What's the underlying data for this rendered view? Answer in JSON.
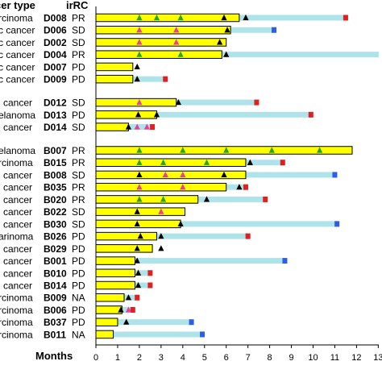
{
  "chart_data": {
    "type": "bar",
    "orientation": "horizontal",
    "header": {
      "cancer_col": "cer type",
      "irrc_col": "irRC"
    },
    "xlabel": "Months",
    "xlim": [
      0,
      13
    ],
    "xticks": [
      0,
      1,
      2,
      3,
      4,
      5,
      6,
      7,
      8,
      9,
      10,
      11,
      12,
      13
    ],
    "colors": {
      "bar_fill": "#ffff00",
      "bar_stroke": "#000000",
      "followup": "#aee3ea",
      "marker_green": "#22a524",
      "marker_pink": "#e8409a",
      "marker_black": "#000000",
      "end_red": "#e0201e",
      "end_blue": "#2f5de6"
    },
    "rows": [
      {
        "cancer": "rcinoma",
        "id": "D008",
        "irrc": "PR",
        "bar": 6.6,
        "follow": 11.5,
        "end": "red",
        "markers": [
          {
            "x": 2,
            "c": "green"
          },
          {
            "x": 2.8,
            "c": "green"
          },
          {
            "x": 3.9,
            "c": "green"
          },
          {
            "x": 5.9,
            "c": "black"
          },
          {
            "x": 6.9,
            "c": "black"
          }
        ]
      },
      {
        "cancer": "c cancer",
        "id": "D006",
        "irrc": "SD",
        "bar": 6.2,
        "follow": 8.2,
        "end": "blue",
        "markers": [
          {
            "x": 2,
            "c": "pink"
          },
          {
            "x": 3.7,
            "c": "pink"
          },
          {
            "x": 6.05,
            "c": "black"
          }
        ]
      },
      {
        "cancer": "c cancer",
        "id": "D002",
        "irrc": "SD",
        "bar": 6.0,
        "follow": null,
        "end": null,
        "markers": [
          {
            "x": 2,
            "c": "pink"
          },
          {
            "x": 3.7,
            "c": "pink"
          },
          {
            "x": 5.7,
            "c": "black"
          }
        ]
      },
      {
        "cancer": "c cancer",
        "id": "D004",
        "irrc": "PR",
        "bar": 5.8,
        "follow": 13.5,
        "end": null,
        "markers": [
          {
            "x": 2,
            "c": "green"
          },
          {
            "x": 3.9,
            "c": "green"
          },
          {
            "x": 6.0,
            "c": "black"
          }
        ]
      },
      {
        "cancer": "c cancer",
        "id": "D007",
        "irrc": "PD",
        "bar": 1.7,
        "follow": null,
        "end": null,
        "markers": [
          {
            "x": 1.9,
            "c": "black"
          }
        ]
      },
      {
        "cancer": "c cancer",
        "id": "D009",
        "irrc": "PD",
        "bar": 1.7,
        "follow": 3.2,
        "end": "red",
        "markers": [
          {
            "x": 1.9,
            "c": "black"
          }
        ]
      },
      {
        "gap": true
      },
      {
        "cancer": "l cancer",
        "id": "D012",
        "irrc": "SD",
        "bar": 3.7,
        "follow": 7.4,
        "end": "red",
        "markers": [
          {
            "x": 2,
            "c": "pink"
          },
          {
            "x": 3.8,
            "c": "black"
          }
        ]
      },
      {
        "cancer": "elanoma",
        "id": "D013",
        "irrc": "PD",
        "bar": 2.8,
        "follow": 9.9,
        "end": "red",
        "markers": [
          {
            "x": 1.95,
            "c": "black"
          },
          {
            "x": 2.8,
            "c": "black"
          }
        ]
      },
      {
        "cancer": "l cancer",
        "id": "D014",
        "irrc": "SD",
        "bar": 1.5,
        "follow": 2.6,
        "end": "red",
        "markers": [
          {
            "x": 1.5,
            "c": "black"
          },
          {
            "x": 1.9,
            "c": "pink"
          },
          {
            "x": 2.35,
            "c": "pink"
          }
        ]
      },
      {
        "gap": true
      },
      {
        "cancer": "elanoma",
        "id": "B007",
        "irrc": "PR",
        "bar": 11.8,
        "follow": null,
        "end": null,
        "markers": [
          {
            "x": 2,
            "c": "green"
          },
          {
            "x": 4,
            "c": "green"
          },
          {
            "x": 6,
            "c": "green"
          },
          {
            "x": 8.1,
            "c": "green"
          },
          {
            "x": 10.3,
            "c": "green"
          }
        ]
      },
      {
        "cancer": "rcinoma",
        "id": "B015",
        "irrc": "PR",
        "bar": 6.9,
        "follow": 8.6,
        "end": "red",
        "markers": [
          {
            "x": 2,
            "c": "green"
          },
          {
            "x": 3.1,
            "c": "green"
          },
          {
            "x": 5.1,
            "c": "green"
          },
          {
            "x": 7.1,
            "c": "black"
          }
        ]
      },
      {
        "cancer": "l cancer",
        "id": "B008",
        "irrc": "SD",
        "bar": 6.9,
        "follow": 11.0,
        "end": "blue",
        "markers": [
          {
            "x": 2,
            "c": "black"
          },
          {
            "x": 3.2,
            "c": "pink"
          },
          {
            "x": 4,
            "c": "pink"
          },
          {
            "x": 5.9,
            "c": "black"
          }
        ]
      },
      {
        "cancer": "l cancer",
        "id": "B035",
        "irrc": "PR",
        "bar": 6.0,
        "follow": 6.9,
        "end": "red",
        "markers": [
          {
            "x": 2,
            "c": "pink"
          },
          {
            "x": 4,
            "c": "pink"
          },
          {
            "x": 6.6,
            "c": "black"
          }
        ]
      },
      {
        "cancer": "l cancer",
        "id": "B020",
        "irrc": "PR",
        "bar": 4.7,
        "follow": 7.8,
        "end": "red",
        "markers": [
          {
            "x": 2,
            "c": "green"
          },
          {
            "x": 3.1,
            "c": "green"
          },
          {
            "x": 5.1,
            "c": "black"
          }
        ]
      },
      {
        "cancer": "l cancer",
        "id": "B022",
        "irrc": "SD",
        "bar": 4.1,
        "follow": null,
        "end": null,
        "markers": [
          {
            "x": 1.9,
            "c": "black"
          },
          {
            "x": 3.0,
            "c": "pink"
          }
        ]
      },
      {
        "cancer": "l cancer",
        "id": "B030",
        "irrc": "SD",
        "bar": 3.9,
        "follow": 11.1,
        "end": "blue",
        "markers": [
          {
            "x": 1.9,
            "c": "black"
          },
          {
            "x": 3.9,
            "c": "black"
          }
        ]
      },
      {
        "cancer": "arinoma",
        "id": "B026",
        "irrc": "PD",
        "bar": 2.8,
        "follow": 7.0,
        "end": "red",
        "markers": [
          {
            "x": 2.05,
            "c": "black"
          },
          {
            "x": 3.0,
            "c": "black"
          }
        ]
      },
      {
        "cancer": "l cancer",
        "id": "B029",
        "irrc": "PD",
        "bar": 2.6,
        "follow": null,
        "end": null,
        "markers": [
          {
            "x": 1.9,
            "c": "black"
          },
          {
            "x": 3.0,
            "c": "black"
          }
        ]
      },
      {
        "cancer": "l cancer",
        "id": "B001",
        "irrc": "PD",
        "bar": 1.8,
        "follow": 8.7,
        "end": "blue",
        "markers": [
          {
            "x": 1.9,
            "c": "black"
          }
        ]
      },
      {
        "cancer": "l cancer",
        "id": "B010",
        "irrc": "PD",
        "bar": 1.8,
        "follow": 2.5,
        "end": "red",
        "markers": [
          {
            "x": 1.95,
            "c": "black"
          }
        ]
      },
      {
        "cancer": "l cancer",
        "id": "B014",
        "irrc": "PD",
        "bar": 1.8,
        "follow": 2.5,
        "end": "red",
        "markers": [
          {
            "x": 1.95,
            "c": "black"
          }
        ]
      },
      {
        "cancer": "rcinoma",
        "id": "B009",
        "irrc": "NA",
        "bar": 1.3,
        "follow": 1.9,
        "end": "red",
        "markers": [
          {
            "x": 1.5,
            "c": "black"
          }
        ]
      },
      {
        "cancer": "rcinoma",
        "id": "B006",
        "irrc": "PD",
        "bar": 1.2,
        "follow": 1.7,
        "end": "red",
        "markers": [
          {
            "x": 1.15,
            "c": "black"
          },
          {
            "x": 1.5,
            "c": "pink"
          }
        ]
      },
      {
        "cancer": "rcinoma",
        "id": "B037",
        "irrc": "PD",
        "bar": 1.0,
        "follow": 4.4,
        "end": "blue",
        "markers": [
          {
            "x": 1.4,
            "c": "black"
          }
        ]
      },
      {
        "cancer": "rcinoma",
        "id": "B011",
        "irrc": "NA",
        "bar": 0.8,
        "follow": 4.9,
        "end": "blue",
        "markers": []
      }
    ]
  }
}
